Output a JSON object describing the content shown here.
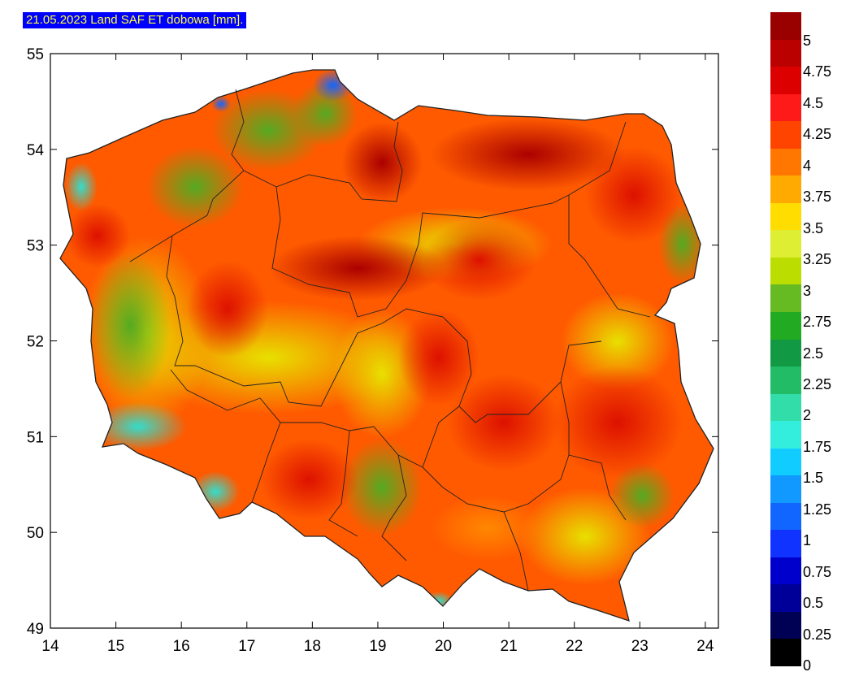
{
  "title": "21.05.2023 Land SAF ET dobowa [mm].",
  "map": {
    "x_ticks": [
      "14",
      "15",
      "16",
      "17",
      "18",
      "19",
      "20",
      "21",
      "22",
      "23",
      "24"
    ],
    "y_ticks": [
      "55",
      "54",
      "53",
      "52",
      "51",
      "50",
      "49"
    ],
    "x_range": [
      14,
      24.2
    ],
    "y_range": [
      49,
      55
    ]
  },
  "legend": {
    "labels": [
      "5",
      "4.75",
      "4.5",
      "4.25",
      "4",
      "3.75",
      "3.5",
      "3.25",
      "3",
      "2.75",
      "2.5",
      "2.25",
      "2",
      "1.75",
      "1.5",
      "1.25",
      "1",
      "0.75",
      "0.5",
      "0.25",
      "0"
    ],
    "colors": [
      "#990000",
      "#bb0000",
      "#dd0000",
      "#ff1a1a",
      "#ff4400",
      "#ff7700",
      "#ffaa00",
      "#ffdd00",
      "#ddee33",
      "#bbdd00",
      "#66bb22",
      "#22aa22",
      "#119944",
      "#22bb66",
      "#33ddaa",
      "#33eedd",
      "#11ccff",
      "#1199ff",
      "#1166ff",
      "#1133ff",
      "#0000cc",
      "#000099",
      "#000055",
      "#000000"
    ]
  }
}
